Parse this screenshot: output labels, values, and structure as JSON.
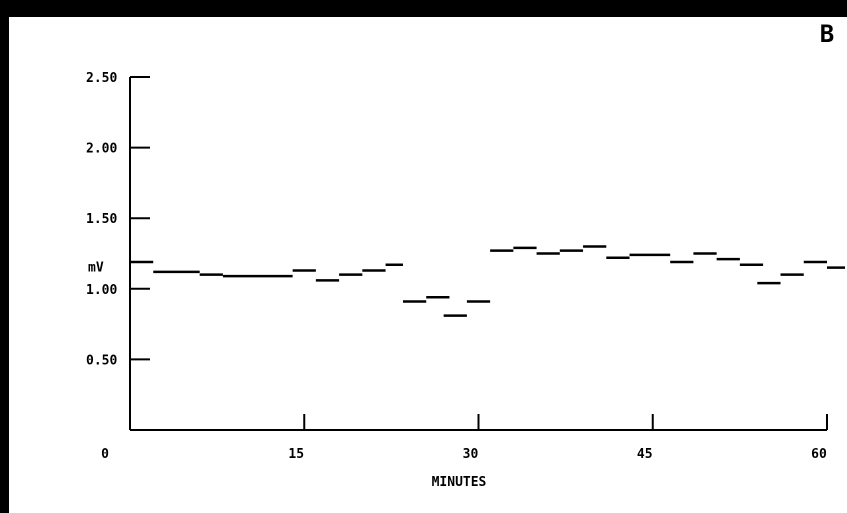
{
  "chart_data": {
    "type": "scatter",
    "panel_label": "B",
    "xlabel": "MINUTES",
    "ylabel": "mV",
    "xlim": [
      0,
      60
    ],
    "ylim": [
      0,
      2.5
    ],
    "x_ticks": [
      {
        "value": 0,
        "label": "0"
      },
      {
        "value": 15,
        "label": "15"
      },
      {
        "value": 30,
        "label": "30"
      },
      {
        "value": 45,
        "label": "45"
      },
      {
        "value": 60,
        "label": "60"
      }
    ],
    "y_ticks": [
      {
        "value": 0.5,
        "label": "0.50"
      },
      {
        "value": 1.0,
        "label": "1.00"
      },
      {
        "value": 1.5,
        "label": "1.50"
      },
      {
        "value": 2.0,
        "label": "2.00"
      },
      {
        "value": 2.5,
        "label": "2.50"
      }
    ],
    "grid": false,
    "points": [
      {
        "x0": 0,
        "x1": 2,
        "y": 1.19
      },
      {
        "x0": 2,
        "x1": 6,
        "y": 1.12
      },
      {
        "x0": 6,
        "x1": 8,
        "y": 1.1
      },
      {
        "x0": 8,
        "x1": 14,
        "y": 1.09
      },
      {
        "x0": 14,
        "x1": 16,
        "y": 1.13
      },
      {
        "x0": 16,
        "x1": 18,
        "y": 1.06
      },
      {
        "x0": 18,
        "x1": 20,
        "y": 1.1
      },
      {
        "x0": 20,
        "x1": 22,
        "y": 1.13
      },
      {
        "x0": 22,
        "x1": 23.5,
        "y": 1.17
      },
      {
        "x0": 23.5,
        "x1": 25.5,
        "y": 0.91
      },
      {
        "x0": 25.5,
        "x1": 27.5,
        "y": 0.94
      },
      {
        "x0": 27,
        "x1": 29,
        "y": 0.81
      },
      {
        "x0": 29,
        "x1": 31,
        "y": 0.91
      },
      {
        "x0": 31,
        "x1": 33,
        "y": 1.27
      },
      {
        "x0": 33,
        "x1": 35,
        "y": 1.29
      },
      {
        "x0": 35,
        "x1": 37,
        "y": 1.25
      },
      {
        "x0": 37,
        "x1": 39,
        "y": 1.27
      },
      {
        "x0": 39,
        "x1": 41,
        "y": 1.3
      },
      {
        "x0": 41,
        "x1": 43,
        "y": 1.22
      },
      {
        "x0": 43,
        "x1": 46.5,
        "y": 1.24
      },
      {
        "x0": 46.5,
        "x1": 48.5,
        "y": 1.19
      },
      {
        "x0": 48.5,
        "x1": 50.5,
        "y": 1.25
      },
      {
        "x0": 50.5,
        "x1": 52.5,
        "y": 1.21
      },
      {
        "x0": 52.5,
        "x1": 54.5,
        "y": 1.17
      },
      {
        "x0": 54,
        "x1": 56,
        "y": 1.04
      },
      {
        "x0": 56,
        "x1": 58,
        "y": 1.1
      },
      {
        "x0": 58,
        "x1": 60,
        "y": 1.19
      },
      {
        "x0": 60,
        "x1": 62,
        "y": 1.15
      }
    ]
  }
}
